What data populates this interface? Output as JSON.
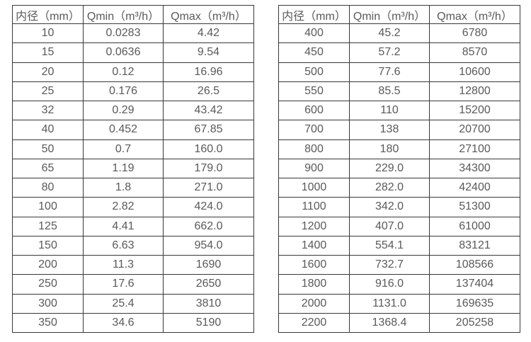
{
  "colors": {
    "border": "#383838",
    "text": "#595959",
    "background": "#ffffff"
  },
  "tables": [
    {
      "name": "flow-range-table-small-diameters",
      "columns": [
        "内径（mm）",
        "Qmin（m³/h）",
        "Qmax（m³/h）"
      ],
      "rows": [
        [
          "10",
          "0.0283",
          "4.42"
        ],
        [
          "15",
          "0.0636",
          "9.54"
        ],
        [
          "20",
          "0.12",
          "16.96"
        ],
        [
          "25",
          "0.176",
          "26.5"
        ],
        [
          "32",
          "0.29",
          "43.42"
        ],
        [
          "40",
          "0.452",
          "67.85"
        ],
        [
          "50",
          "0.7",
          "160.0"
        ],
        [
          "65",
          "1.19",
          "179.0"
        ],
        [
          "80",
          "1.8",
          "271.0"
        ],
        [
          "100",
          "2.82",
          "424.0"
        ],
        [
          "125",
          "4.41",
          "662.0"
        ],
        [
          "150",
          "6.63",
          "954.0"
        ],
        [
          "200",
          "11.3",
          "1690"
        ],
        [
          "250",
          "17.6",
          "2650"
        ],
        [
          "300",
          "25.4",
          "3810"
        ],
        [
          "350",
          "34.6",
          "5190"
        ]
      ]
    },
    {
      "name": "flow-range-table-large-diameters",
      "columns": [
        "内径（mm）",
        "Qmin（m³/h）",
        "Qmax（m³/h）"
      ],
      "rows": [
        [
          "400",
          "45.2",
          "6780"
        ],
        [
          "450",
          "57.2",
          "8570"
        ],
        [
          "500",
          "77.6",
          "10600"
        ],
        [
          "550",
          "85.5",
          "12800"
        ],
        [
          "600",
          "110",
          "15200"
        ],
        [
          "700",
          "138",
          "20700"
        ],
        [
          "800",
          "180",
          "27100"
        ],
        [
          "900",
          "229.0",
          "34300"
        ],
        [
          "1000",
          "282.0",
          "42400"
        ],
        [
          "1100",
          "342.0",
          "51300"
        ],
        [
          "1200",
          "407.0",
          "61000"
        ],
        [
          "1400",
          "554.1",
          "83121"
        ],
        [
          "1600",
          "732.7",
          "108566"
        ],
        [
          "1800",
          "916.0",
          "137404"
        ],
        [
          "2000",
          "1131.0",
          "169635"
        ],
        [
          "2200",
          "1368.4",
          "205258"
        ]
      ]
    }
  ]
}
